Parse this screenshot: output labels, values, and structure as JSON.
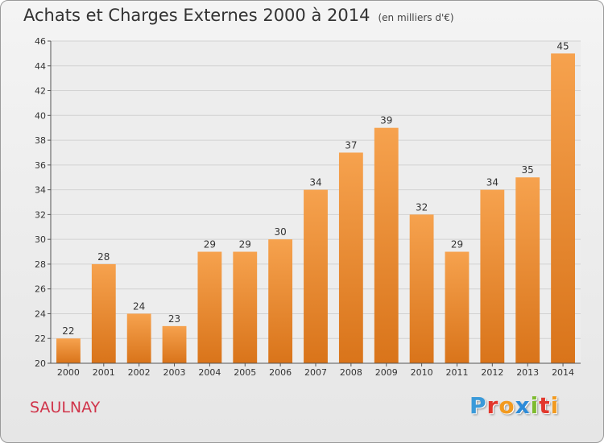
{
  "header": {
    "title": "Achats et Charges Externes 2000 à 2014",
    "subtitle": "(en milliers d'€)"
  },
  "footer": {
    "location": "SAULNAY",
    "logo_text": "Proxiti"
  },
  "colors": {
    "bar_top": "#f6a24e",
    "bar_bottom": "#d9741a",
    "grid": "#d2d2d2",
    "axis_text": "#333333",
    "location_text": "#d0344a"
  },
  "chart_data": {
    "type": "bar",
    "title": "Achats et Charges Externes 2000 à 2014",
    "xlabel": "",
    "ylabel": "",
    "categories": [
      "2000",
      "2001",
      "2002",
      "2003",
      "2004",
      "2005",
      "2006",
      "2007",
      "2008",
      "2009",
      "2010",
      "2011",
      "2012",
      "2013",
      "2014"
    ],
    "values": [
      22,
      28,
      24,
      23,
      29,
      29,
      30,
      34,
      37,
      39,
      32,
      29,
      34,
      35,
      45
    ],
    "ylim": [
      20,
      46
    ],
    "yticks": [
      20,
      22,
      24,
      26,
      28,
      30,
      32,
      34,
      36,
      38,
      40,
      42,
      44,
      46
    ],
    "grid": true,
    "data_labels": true
  }
}
